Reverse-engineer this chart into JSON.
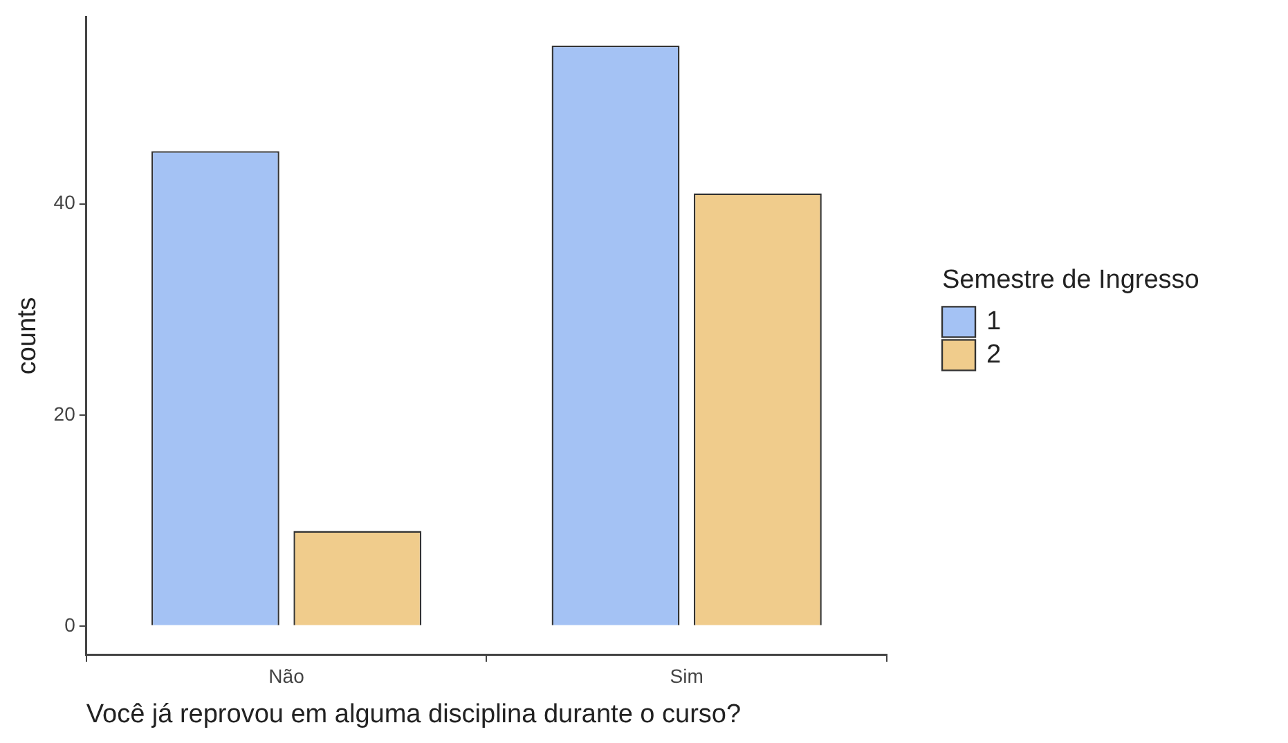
{
  "chart_data": {
    "type": "bar",
    "xlabel": "Você já reprovou em alguma disciplina durante o curso?",
    "ylabel": "counts",
    "legend_title": "Semestre de Ingresso",
    "categories": [
      "Não",
      "Sim"
    ],
    "series": [
      {
        "name": "1",
        "color": "#a4c2f4",
        "values": [
          45,
          55
        ]
      },
      {
        "name": "2",
        "color": "#f0cc8c",
        "values": [
          9,
          41
        ]
      }
    ],
    "ylim": [
      -2.75,
      57.75
    ],
    "yticks": [
      0,
      20,
      40
    ],
    "grid": false,
    "legend": "right"
  }
}
